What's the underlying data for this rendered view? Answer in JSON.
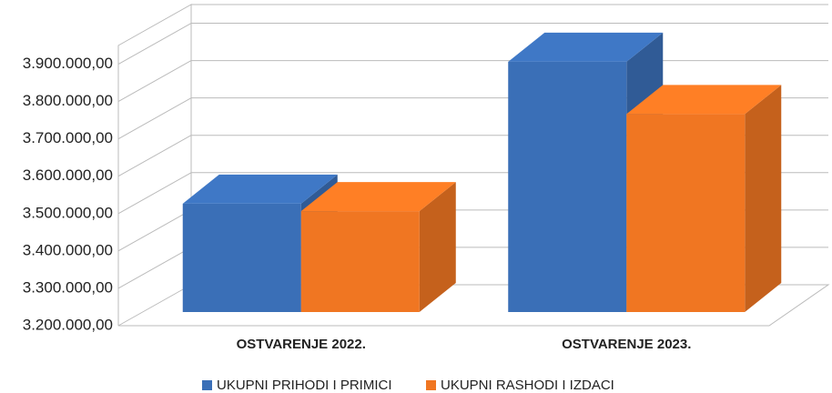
{
  "chart_data": {
    "type": "bar3d",
    "categories": [
      "OSTVARENJE 2022.",
      "OSTVARENJE 2023."
    ],
    "series": [
      {
        "name": "UKUPNI PRIHODI I PRIMICI",
        "color": "#3a6fb7",
        "values": [
          3490000,
          3870000
        ]
      },
      {
        "name": "UKUPNI RASHODI I IZDACI",
        "color": "#f07622",
        "values": [
          3470000,
          3730000
        ]
      }
    ],
    "ylim": [
      3200000,
      3950000
    ],
    "yticks": [
      {
        "value": 3200000,
        "label": "3.200.000,00"
      },
      {
        "value": 3300000,
        "label": "3.300.000,00"
      },
      {
        "value": 3400000,
        "label": "3.400.000,00"
      },
      {
        "value": 3500000,
        "label": "3.500.000,00"
      },
      {
        "value": 3600000,
        "label": "3.600.000,00"
      },
      {
        "value": 3700000,
        "label": "3.700.000,00"
      },
      {
        "value": 3800000,
        "label": "3.800.000,00"
      },
      {
        "value": 3900000,
        "label": "3.900.000,00"
      }
    ],
    "grid": true,
    "legend": "bottom"
  }
}
